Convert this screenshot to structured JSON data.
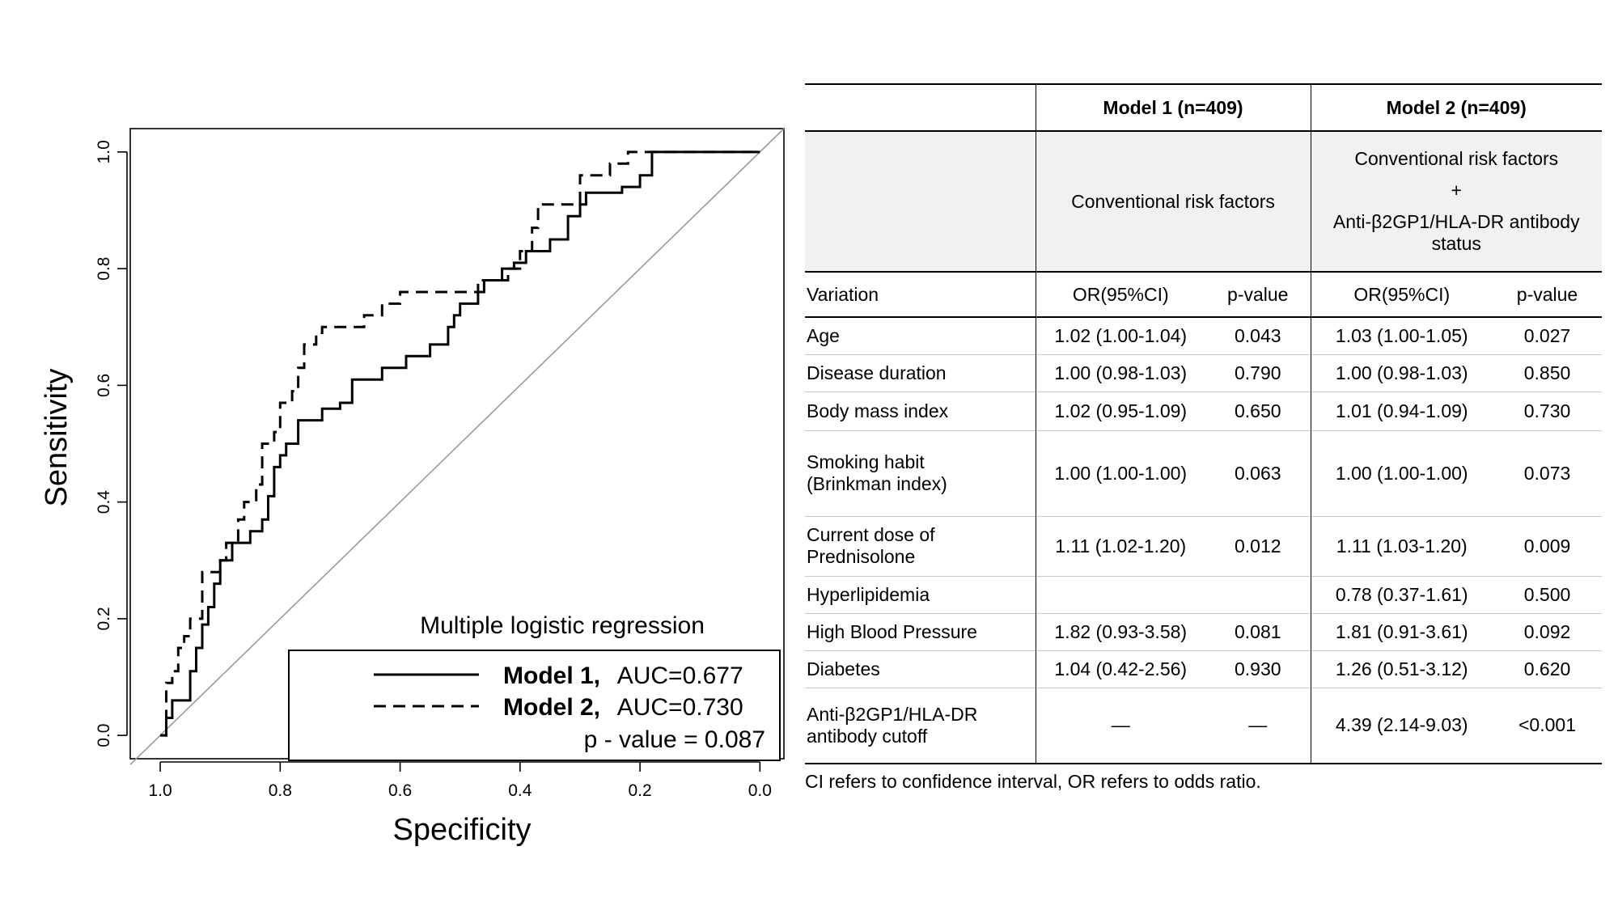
{
  "chart_data": {
    "type": "line",
    "xlabel": "Specificity",
    "ylabel": "Sensitivity",
    "xlim": [
      1.05,
      -0.04
    ],
    "ylim": [
      -0.04,
      1.04
    ],
    "x_reversed": true,
    "xticks": [
      "1.0",
      "0.8",
      "0.6",
      "0.4",
      "0.2",
      "0.0"
    ],
    "yticks": [
      "0.0",
      "0.2",
      "0.4",
      "0.6",
      "0.8",
      "1.0"
    ],
    "legend": {
      "title": "Multiple logistic regression",
      "placement": "bottom-right",
      "entries": [
        {
          "name": "Model 1,",
          "value": "AUC=0.677",
          "linestyle": "solid"
        },
        {
          "name": "Model 2,",
          "value": "AUC=0.730",
          "linestyle": "dashed"
        }
      ],
      "pvalue": "p - value = 0.087"
    },
    "reference_diagonal": true,
    "series": [
      {
        "name": "Model 1",
        "x": [
          1.0,
          0.99,
          0.99,
          0.98,
          0.98,
          0.95,
          0.95,
          0.94,
          0.94,
          0.93,
          0.93,
          0.92,
          0.92,
          0.91,
          0.91,
          0.9,
          0.9,
          0.88,
          0.88,
          0.85,
          0.85,
          0.83,
          0.83,
          0.82,
          0.82,
          0.81,
          0.81,
          0.8,
          0.8,
          0.79,
          0.79,
          0.77,
          0.77,
          0.76,
          0.76,
          0.73,
          0.73,
          0.7,
          0.7,
          0.68,
          0.68,
          0.67,
          0.67,
          0.63,
          0.63,
          0.59,
          0.59,
          0.55,
          0.55,
          0.52,
          0.52,
          0.51,
          0.51,
          0.5,
          0.5,
          0.47,
          0.47,
          0.46,
          0.46,
          0.43,
          0.43,
          0.41,
          0.41,
          0.39,
          0.39,
          0.35,
          0.35,
          0.32,
          0.32,
          0.3,
          0.3,
          0.29,
          0.29,
          0.27,
          0.27,
          0.23,
          0.23,
          0.2,
          0.2,
          0.18,
          0.18,
          0.1,
          0.0
        ],
        "y": [
          0.0,
          0.0,
          0.03,
          0.03,
          0.06,
          0.06,
          0.11,
          0.11,
          0.15,
          0.15,
          0.19,
          0.19,
          0.22,
          0.22,
          0.26,
          0.26,
          0.3,
          0.3,
          0.33,
          0.33,
          0.35,
          0.35,
          0.37,
          0.37,
          0.41,
          0.41,
          0.46,
          0.46,
          0.48,
          0.48,
          0.5,
          0.5,
          0.54,
          0.54,
          0.54,
          0.54,
          0.56,
          0.56,
          0.57,
          0.57,
          0.61,
          0.61,
          0.61,
          0.61,
          0.63,
          0.63,
          0.65,
          0.65,
          0.67,
          0.67,
          0.7,
          0.7,
          0.72,
          0.72,
          0.74,
          0.74,
          0.76,
          0.76,
          0.78,
          0.78,
          0.8,
          0.8,
          0.81,
          0.81,
          0.83,
          0.83,
          0.85,
          0.85,
          0.89,
          0.89,
          0.91,
          0.91,
          0.93,
          0.93,
          0.93,
          0.93,
          0.94,
          0.94,
          0.96,
          0.96,
          1.0,
          1.0,
          1.0
        ]
      },
      {
        "name": "Model 2",
        "x": [
          1.0,
          0.99,
          0.99,
          0.98,
          0.98,
          0.97,
          0.97,
          0.96,
          0.96,
          0.95,
          0.95,
          0.93,
          0.93,
          0.9,
          0.9,
          0.89,
          0.89,
          0.87,
          0.87,
          0.86,
          0.86,
          0.84,
          0.84,
          0.83,
          0.83,
          0.81,
          0.81,
          0.8,
          0.8,
          0.78,
          0.78,
          0.77,
          0.77,
          0.76,
          0.76,
          0.74,
          0.74,
          0.73,
          0.73,
          0.72,
          0.72,
          0.66,
          0.66,
          0.63,
          0.63,
          0.6,
          0.6,
          0.58,
          0.58,
          0.52,
          0.52,
          0.47,
          0.47,
          0.42,
          0.42,
          0.4,
          0.4,
          0.38,
          0.38,
          0.37,
          0.37,
          0.33,
          0.33,
          0.3,
          0.3,
          0.25,
          0.25,
          0.22,
          0.22,
          0.18,
          0.18,
          0.12,
          0.12,
          0.0
        ],
        "y": [
          0.0,
          0.0,
          0.09,
          0.09,
          0.11,
          0.11,
          0.15,
          0.15,
          0.17,
          0.17,
          0.2,
          0.2,
          0.28,
          0.28,
          0.3,
          0.3,
          0.33,
          0.33,
          0.37,
          0.37,
          0.4,
          0.4,
          0.43,
          0.43,
          0.5,
          0.5,
          0.52,
          0.52,
          0.57,
          0.57,
          0.59,
          0.59,
          0.63,
          0.63,
          0.67,
          0.67,
          0.69,
          0.69,
          0.7,
          0.7,
          0.7,
          0.7,
          0.72,
          0.72,
          0.74,
          0.74,
          0.76,
          0.76,
          0.76,
          0.76,
          0.76,
          0.76,
          0.78,
          0.78,
          0.8,
          0.8,
          0.83,
          0.83,
          0.87,
          0.87,
          0.91,
          0.91,
          0.91,
          0.91,
          0.96,
          0.96,
          0.98,
          0.98,
          1.0,
          1.0,
          1.0,
          1.0,
          1.0,
          1.0
        ]
      }
    ]
  },
  "table": {
    "header": {
      "model1": "Model 1 (n=409)",
      "model2": "Model 2 (n=409)"
    },
    "description": {
      "model1": "Conventional risk factors",
      "model2_line1": "Conventional risk factors",
      "model2_plus": "+",
      "model2_line2": "Anti-β2GP1/HLA-DR antibody status"
    },
    "columns": [
      "Variation",
      "OR(95%CI)",
      "p-value",
      "OR(95%CI)",
      "p-value"
    ],
    "rows": [
      {
        "variable": "Age",
        "m1_or": "1.02 (1.00-1.04)",
        "m1_p": "0.043",
        "m2_or": "1.03 (1.00-1.05)",
        "m2_p": "0.027"
      },
      {
        "variable": "Disease duration",
        "m1_or": "1.00 (0.98-1.03)",
        "m1_p": "0.790",
        "m2_or": "1.00 (0.98-1.03)",
        "m2_p": "0.850"
      },
      {
        "variable": "Body mass index",
        "m1_or": "1.02 (0.95-1.09)",
        "m1_p": "0.650",
        "m2_or": "1.01 (0.94-1.09)",
        "m2_p": "0.730"
      },
      {
        "variable_line1": "Smoking habit",
        "variable_line2": "(Brinkman index)",
        "m1_or": "1.00 (1.00-1.00)",
        "m1_p": "0.063",
        "m2_or": "1.00 (1.00-1.00)",
        "m2_p": "0.073"
      },
      {
        "variable_line1": "Current dose of",
        "variable_line2": "Prednisolone",
        "m1_or": "1.11 (1.02-1.20)",
        "m1_p": "0.012",
        "m2_or": "1.11 (1.03-1.20)",
        "m2_p": "0.009"
      },
      {
        "variable": "Hyperlipidemia",
        "m1_or": "",
        "m1_p": "",
        "m2_or": "0.78 (0.37-1.61)",
        "m2_p": "0.500"
      },
      {
        "variable": "High Blood Pressure",
        "m1_or": "1.82 (0.93-3.58)",
        "m1_p": "0.081",
        "m2_or": "1.81 (0.91-3.61)",
        "m2_p": "0.092"
      },
      {
        "variable": "Diabetes",
        "m1_or": "1.04 (0.42-2.56)",
        "m1_p": "0.930",
        "m2_or": "1.26 (0.51-3.12)",
        "m2_p": "0.620"
      },
      {
        "variable_line1": "Anti-β2GP1/HLA-DR",
        "variable_line2": "antibody cutoff",
        "m1_or": "—",
        "m1_p": "—",
        "m2_or": "4.39 (2.14-9.03)",
        "m2_p": "<0.001"
      }
    ],
    "footnote": "CI refers to confidence interval, OR refers to odds ratio."
  }
}
